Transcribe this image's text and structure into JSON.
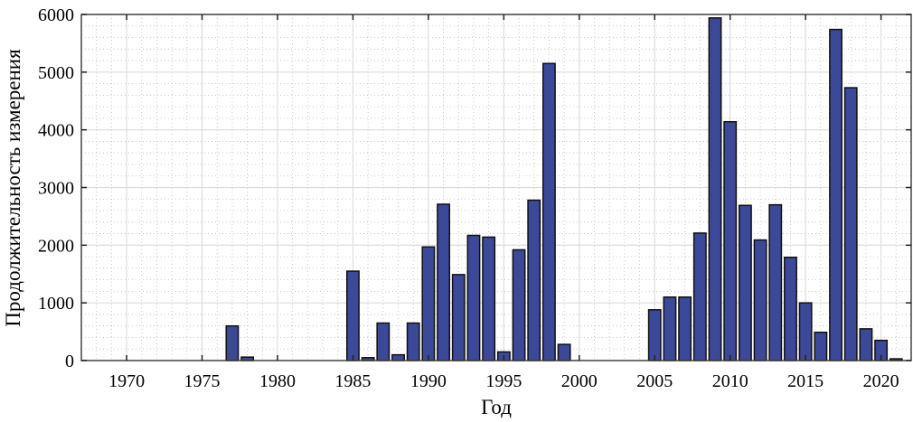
{
  "chart_data": {
    "type": "bar",
    "title": "",
    "xlabel": "Год",
    "ylabel": "Продолжительность измерения",
    "xlim": [
      1967,
      2022
    ],
    "ylim": [
      0,
      6000
    ],
    "xticks": [
      1970,
      1975,
      1980,
      1985,
      1990,
      1995,
      2000,
      2005,
      2010,
      2015,
      2020
    ],
    "yticks": [
      0,
      1000,
      2000,
      3000,
      4000,
      5000,
      6000
    ],
    "grid": true,
    "minor_grid": true,
    "bar_color": "#3c4898",
    "edge_color": "#111111",
    "x": [
      1977,
      1978,
      1985,
      1986,
      1987,
      1988,
      1989,
      1990,
      1991,
      1992,
      1993,
      1994,
      1995,
      1996,
      1997,
      1998,
      1999,
      2005,
      2006,
      2007,
      2008,
      2009,
      2010,
      2011,
      2012,
      2013,
      2014,
      2015,
      2016,
      2017,
      2018,
      2019,
      2020,
      2021
    ],
    "values": [
      600,
      60,
      1550,
      50,
      650,
      100,
      650,
      1970,
      2710,
      1490,
      2170,
      2140,
      150,
      1920,
      2780,
      5150,
      280,
      880,
      1100,
      1100,
      2210,
      5940,
      4140,
      2690,
      2090,
      2700,
      1790,
      1000,
      490,
      5740,
      4730,
      550,
      350,
      30
    ]
  }
}
